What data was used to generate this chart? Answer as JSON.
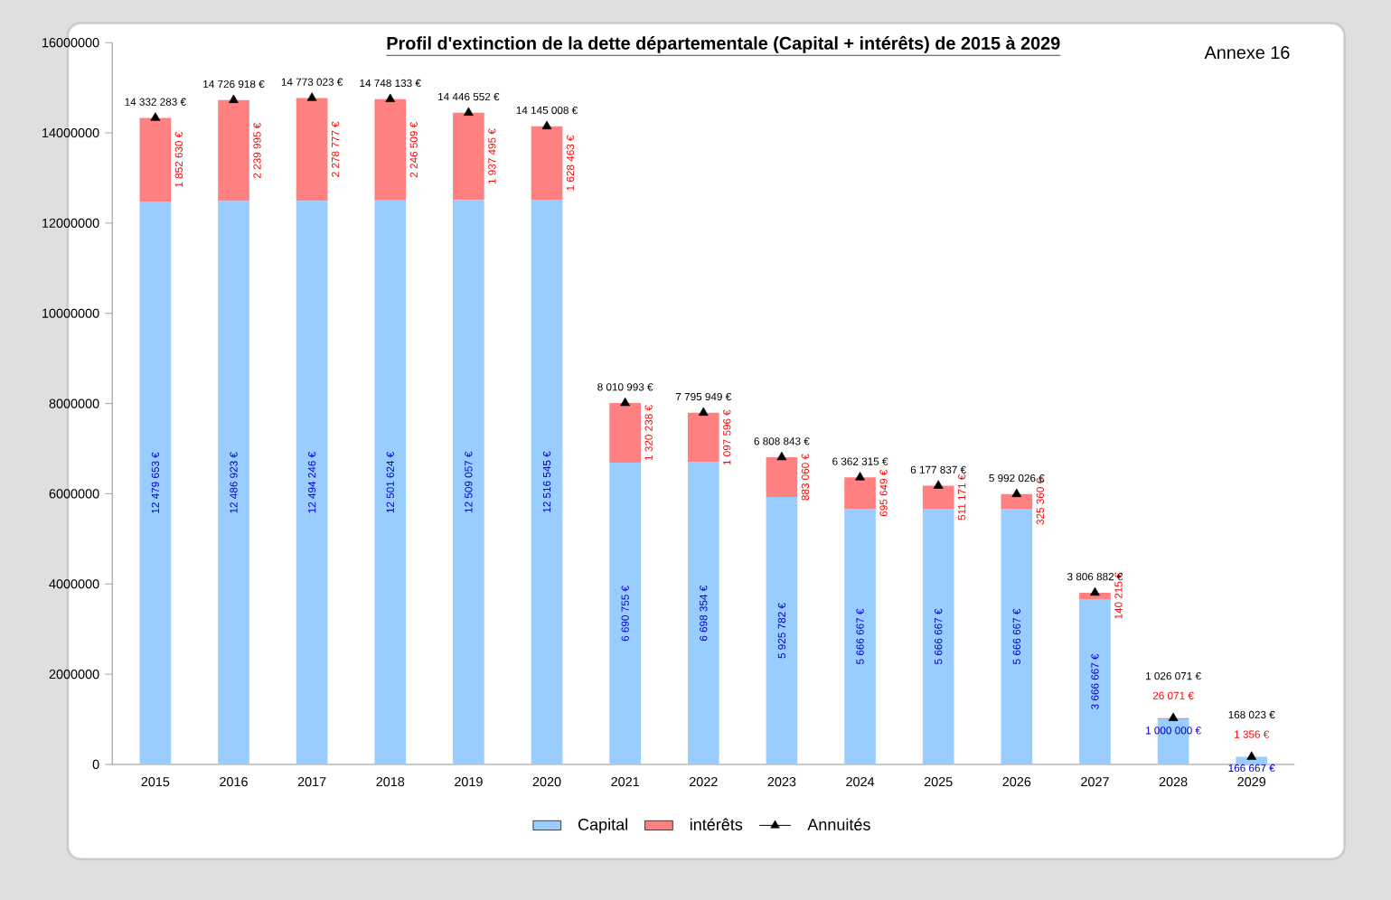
{
  "chart_data": {
    "type": "bar",
    "title": "Profil d'extinction de la dette départementale  (Capital + intérêts) de 2015 à 2029",
    "annotations": [
      "Annexe 16"
    ],
    "categories": [
      "2015",
      "2016",
      "2017",
      "2018",
      "2019",
      "2020",
      "2021",
      "2022",
      "2023",
      "2024",
      "2025",
      "2026",
      "2027",
      "2028",
      "2029"
    ],
    "stacked": true,
    "ylim": [
      0,
      16000000
    ],
    "yticks": [
      0,
      2000000,
      4000000,
      6000000,
      8000000,
      10000000,
      12000000,
      14000000,
      16000000
    ],
    "grid": false,
    "legend": "bottom",
    "series": [
      {
        "name": "Capital",
        "color": "#99ccff",
        "values": [
          12479653,
          12486923,
          12494246,
          12501624,
          12509057,
          12516545,
          6690755,
          6698354,
          5925782,
          5666667,
          5666667,
          5666667,
          3666667,
          1000000,
          166667
        ],
        "value_labels": [
          "12 479 653 €",
          "12 486 923 €",
          "12 494 246 €",
          "12 501 624 €",
          "12 509 057 €",
          "12 516 545 €",
          "6 690 755 €",
          "6 698 354 €",
          "5 925 782 €",
          "5 666 667 €",
          "5 666 667 €",
          "5 666 667 €",
          "3 666 667 €",
          "1 000 000 €",
          "166 667 €"
        ]
      },
      {
        "name": "intérêts",
        "color": "#ff8080",
        "values": [
          1852630,
          2239995,
          2278777,
          2246509,
          1937495,
          1628463,
          1320238,
          1097596,
          883060,
          695649,
          511171,
          325360,
          140215,
          26071,
          1356
        ],
        "value_labels": [
          "1 852 630 €",
          "2 239 995 €",
          "2 278 777 €",
          "2 246 509 €",
          "1 937 495 €",
          "1 628 463 €",
          "1 320 238 €",
          "1 097 596 €",
          "883 060 €",
          "695 649 €",
          "511 171 €",
          "325 360 €",
          "140 215 €",
          "26 071 €",
          "1 356 €"
        ]
      },
      {
        "name": "Annuités",
        "type": "scatter",
        "marker": "triangle",
        "color": "#000000",
        "values": [
          14332283,
          14726918,
          14773023,
          14748133,
          14446552,
          14145008,
          8010993,
          7795949,
          6808843,
          6362315,
          6177837,
          5992026,
          3806882,
          1026071,
          168023
        ],
        "value_labels": [
          "14 332 283 €",
          "14 726 918 €",
          "14 773 023 €",
          "14 748 133 €",
          "14 446 552 €",
          "14 145 008 €",
          "8 010 993 €",
          "7 795 949 €",
          "6 808 843 €",
          "6 362 315 €",
          "6 177 837 €",
          "5 992 026 €",
          "3 806 882 €",
          "1 026 071 €",
          "168 023 €"
        ]
      }
    ]
  }
}
